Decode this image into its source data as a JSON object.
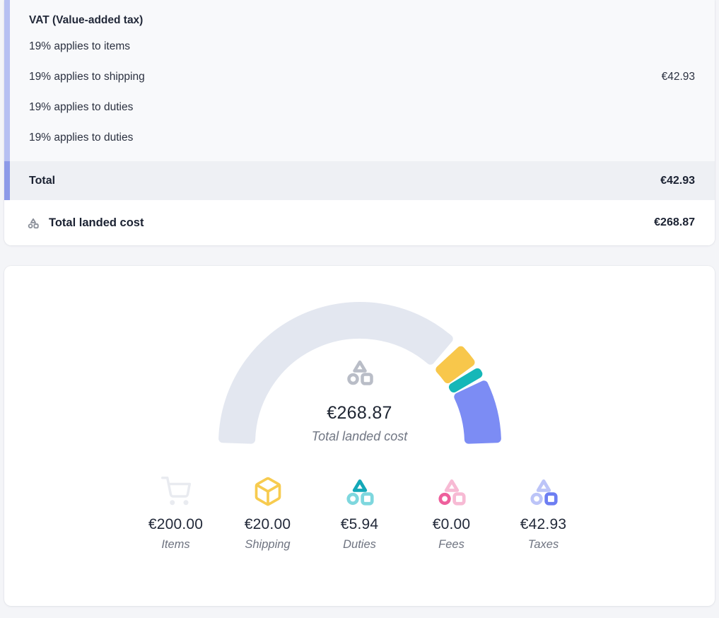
{
  "card_breakdown": {
    "header": "VAT (Value-added tax)",
    "rows": [
      {
        "label": "19% applies to items",
        "amount": ""
      },
      {
        "label": "19% applies to shipping",
        "amount": "€42.93"
      },
      {
        "label": "19% applies to duties",
        "amount": ""
      },
      {
        "label": "19% applies to duties",
        "amount": ""
      }
    ],
    "total": {
      "label": "Total",
      "amount": "€42.93"
    },
    "landed": {
      "label": "Total landed cost",
      "amount": "€268.87"
    }
  },
  "chart_data": {
    "type": "pie",
    "variant": "semicircle-gauge-half-donut",
    "arc_span_degrees": 180,
    "categories": [
      "Items",
      "Shipping",
      "Duties",
      "Fees",
      "Taxes"
    ],
    "values": [
      200.0,
      20.0,
      5.94,
      0.0,
      42.93
    ],
    "formatted_values": [
      "€200.00",
      "€20.00",
      "€5.94",
      "€0.00",
      "€42.93"
    ],
    "total": 268.87,
    "center_value": "€268.87",
    "center_label": "Total landed cost",
    "segment_colors": [
      "#E3E7F0",
      "#F8C74B",
      "#15B7B8",
      "#F0619B",
      "#7C8CF4"
    ],
    "legend_position": "bottom"
  },
  "colors": {
    "accent_strip_light": "#B7C0F2",
    "accent_strip_dark": "#8D9AE8",
    "items_gray": "#E9EBF0",
    "shipping_yellow": "#F7CB4F",
    "duties_teal_dark": "#13A8B8",
    "duties_teal_light": "#7ED7DE",
    "fees_pink_dark": "#EE5F9C",
    "fees_pink_light": "#F7BAD4",
    "taxes_purple_dark": "#6D7EF2",
    "taxes_purple_light": "#BCC4F8",
    "trio_gray": "#B9BDC7",
    "value_text": "#222939",
    "label_text": "#6E7380"
  }
}
